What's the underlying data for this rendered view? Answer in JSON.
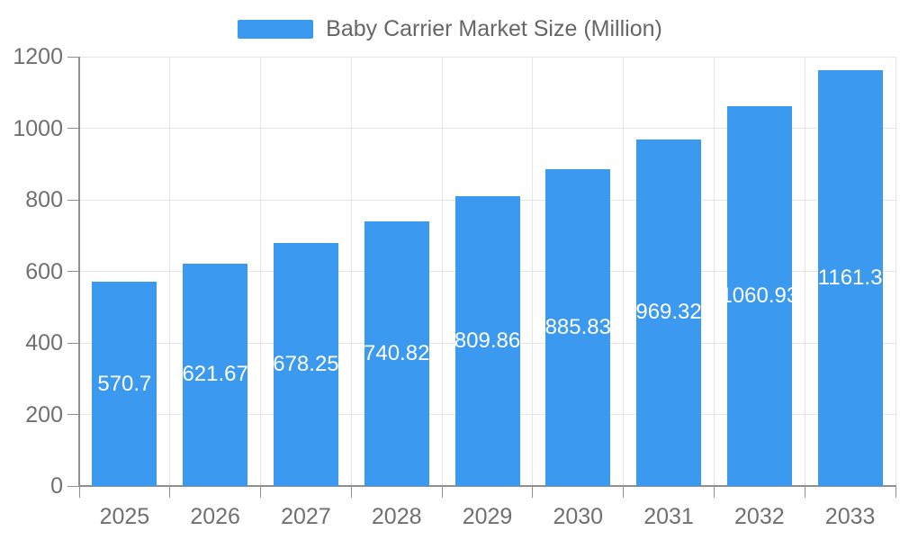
{
  "chart_data": {
    "type": "bar",
    "title": "Baby Carrier Market Size (Million)",
    "categories": [
      "2025",
      "2026",
      "2027",
      "2028",
      "2029",
      "2030",
      "2031",
      "2032",
      "2033"
    ],
    "values": [
      570.7,
      621.67,
      678.25,
      740.82,
      809.86,
      885.83,
      969.32,
      1060.93,
      1161.3
    ],
    "value_labels": [
      "570.7",
      "621.67",
      "678.25",
      "740.82",
      "809.86",
      "885.83",
      "969.32",
      "1060.93",
      "1161.3"
    ],
    "xlabel": "",
    "ylabel": "",
    "ylim": [
      0,
      1200
    ],
    "ytick_step": 200,
    "ytick_labels": [
      "0",
      "200",
      "400",
      "600",
      "800",
      "1000",
      "1200"
    ],
    "grid": true,
    "legend_position": "top-center",
    "bar_color": "#3B99F0",
    "value_label_color": "#FFFFFF",
    "axis_line_color": "#8F8F8F",
    "grid_line_color": "#E5E5E5",
    "axis_text_color": "#707070",
    "legend_text_color": "#666666"
  }
}
